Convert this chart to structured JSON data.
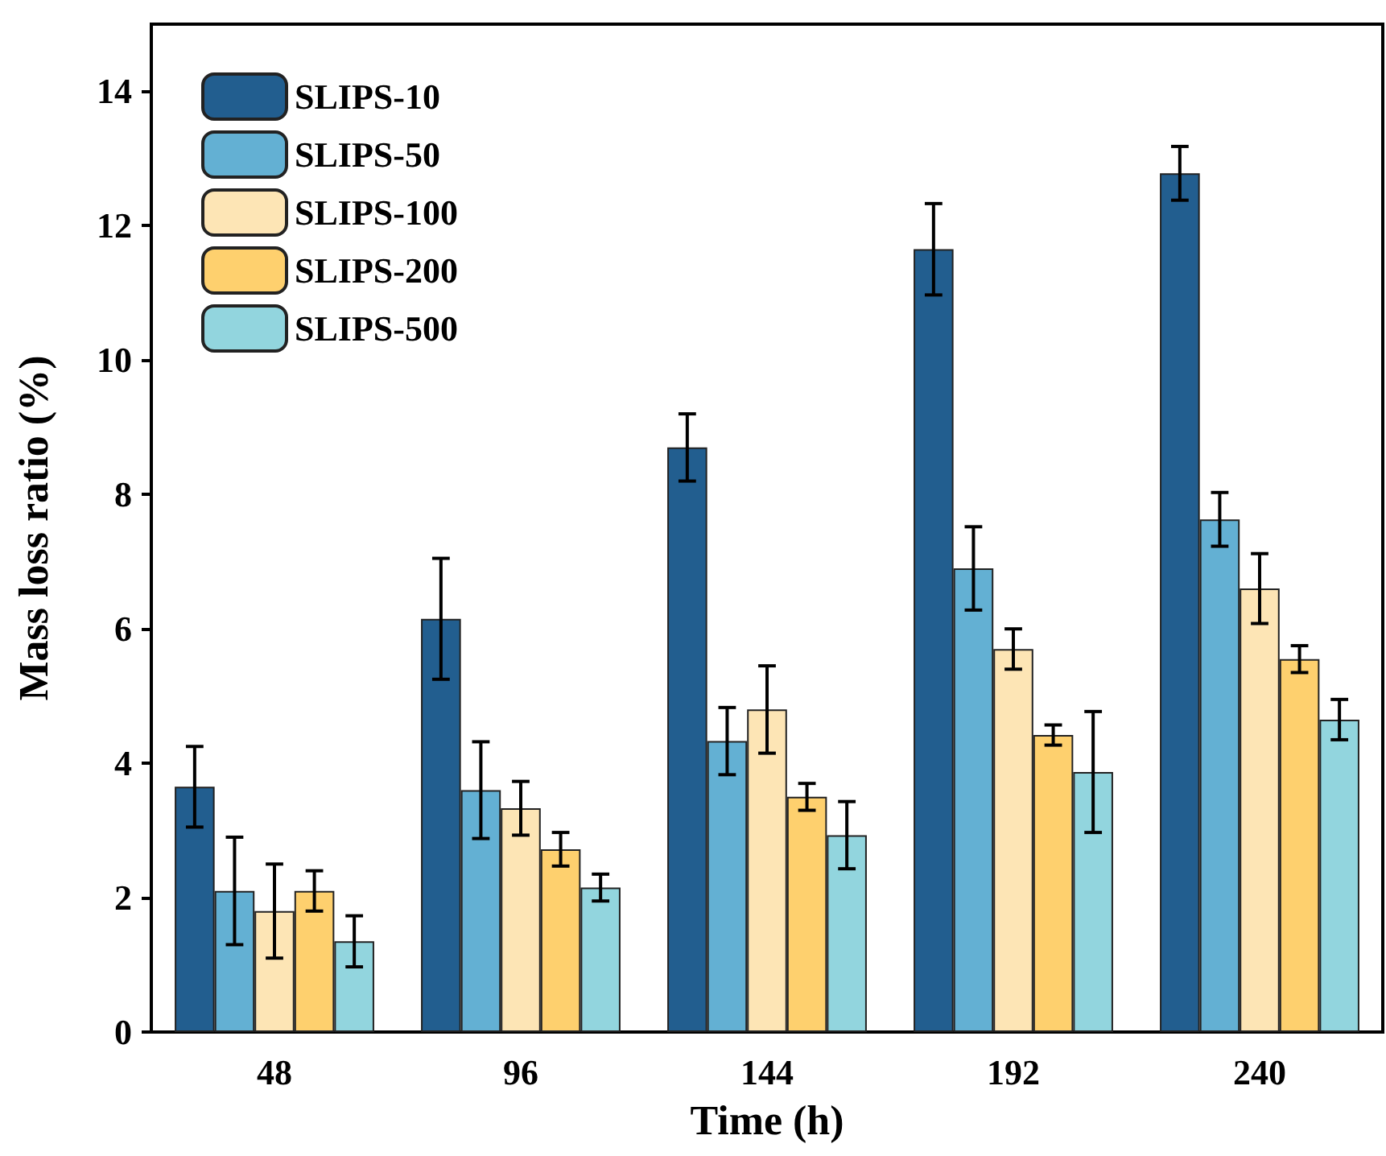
{
  "chart_data": {
    "type": "bar",
    "xlabel": "Time (h)",
    "ylabel": "Mass loss ratio (%)",
    "categories": [
      "48",
      "96",
      "144",
      "192",
      "240"
    ],
    "ylim": [
      0,
      15
    ],
    "yticks": [
      0,
      2,
      4,
      6,
      8,
      10,
      12,
      14
    ],
    "grid": false,
    "legend": "top left",
    "series": [
      {
        "name": "SLIPS-10",
        "color": "#225e8f",
        "values": [
          3.65,
          6.15,
          8.7,
          11.65,
          12.78
        ],
        "errors": [
          0.6,
          0.9,
          0.5,
          0.68,
          0.4
        ]
      },
      {
        "name": "SLIPS-50",
        "color": "#63b0d3",
        "values": [
          2.1,
          3.6,
          4.33,
          6.9,
          7.63
        ],
        "errors": [
          0.8,
          0.72,
          0.5,
          0.62,
          0.4
        ]
      },
      {
        "name": "SLIPS-100",
        "color": "#fde5b5",
        "values": [
          1.8,
          3.33,
          4.8,
          5.7,
          6.6
        ],
        "errors": [
          0.7,
          0.4,
          0.65,
          0.3,
          0.52
        ]
      },
      {
        "name": "SLIPS-200",
        "color": "#fed06e",
        "values": [
          2.1,
          2.72,
          3.5,
          4.42,
          5.55
        ],
        "errors": [
          0.3,
          0.25,
          0.2,
          0.15,
          0.2
        ]
      },
      {
        "name": "SLIPS-500",
        "color": "#92d5de",
        "values": [
          1.35,
          2.15,
          2.93,
          3.87,
          4.65
        ],
        "errors": [
          0.38,
          0.2,
          0.5,
          0.9,
          0.3
        ]
      }
    ]
  }
}
